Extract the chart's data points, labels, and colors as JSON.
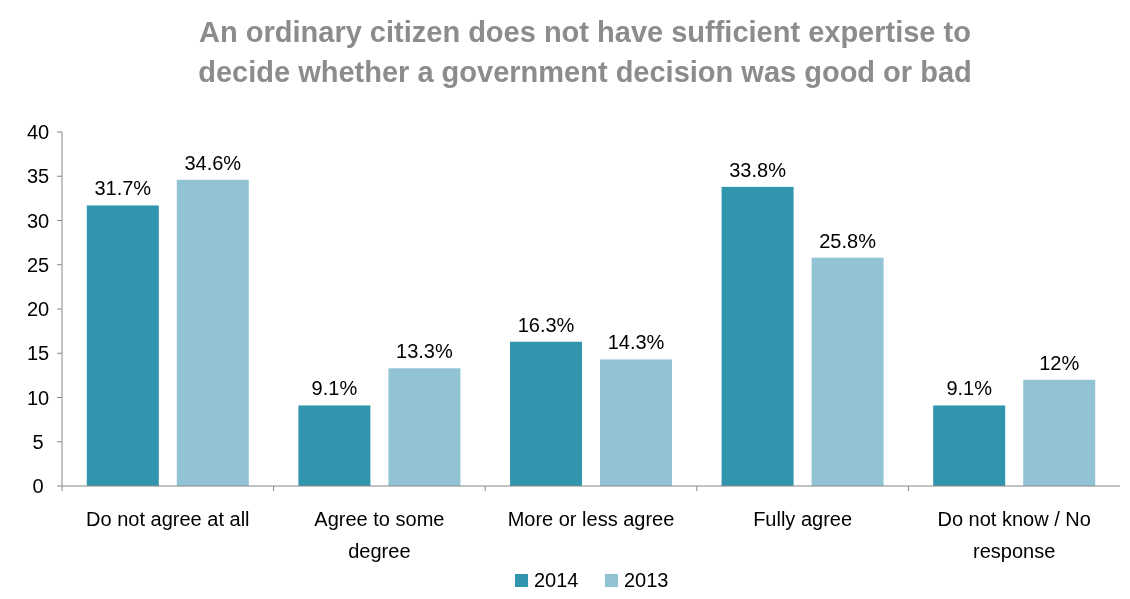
{
  "chart_data": {
    "type": "bar",
    "title": "An ordinary citizen does not have sufficient expertise to decide whether a government decision was good or bad",
    "categories": [
      "Do not agree at all",
      "Agree to some degree",
      "More or less agree",
      "Fully agree",
      "Do not know / No response"
    ],
    "series": [
      {
        "name": "2014",
        "color": "#3195ad",
        "values": [
          31.7,
          9.1,
          16.3,
          33.8,
          9.1
        ],
        "value_labels": [
          "31.7%",
          "9.1%",
          "16.3%",
          "33.8%",
          "9.1%"
        ]
      },
      {
        "name": "2013",
        "color": "#92c3d5",
        "values": [
          34.6,
          13.3,
          14.3,
          25.8,
          12
        ],
        "value_labels": [
          "34.6%",
          "13.3%",
          "14.3%",
          "25.8%",
          "12%"
        ]
      }
    ],
    "ylim": [
      0,
      40
    ],
    "yticks": [
      0,
      5,
      10,
      15,
      20,
      25,
      30,
      35,
      40
    ],
    "grid": false,
    "legend": "bottom"
  }
}
